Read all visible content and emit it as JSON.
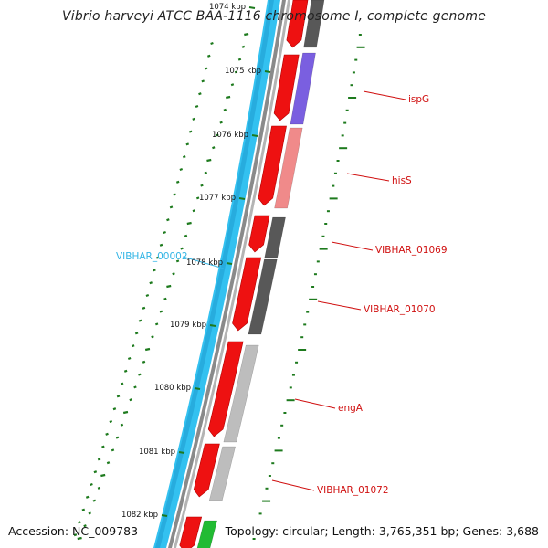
{
  "title": "Vibrio harveyi ATCC BAA-1116 chromosome I, complete genome",
  "accession": "Accession: NC_009783",
  "summary": "Topology: circular; Length: 3,765,351 bp; Genes: 3,688",
  "kbp_ticks": [
    {
      "label": "1074 kbp"
    },
    {
      "label": "1075 kbp"
    },
    {
      "label": "1076 kbp"
    },
    {
      "label": "1077 kbp"
    },
    {
      "label": "1078 kbp"
    },
    {
      "label": "1079 kbp"
    },
    {
      "label": "1080 kbp"
    },
    {
      "label": "1081 kbp"
    },
    {
      "label": "1082 kbp"
    }
  ],
  "gene_labels": [
    {
      "text": "ispG",
      "color": "#d01010"
    },
    {
      "text": "hisS",
      "color": "#d01010"
    },
    {
      "text": "VIBHAR_01069",
      "color": "#d01010"
    },
    {
      "text": "VIBHAR_01070",
      "color": "#d01010"
    },
    {
      "text": "engA",
      "color": "#d01010"
    },
    {
      "text": "VIBHAR_01072",
      "color": "#d01010"
    },
    {
      "text": "VIBHAR_00002",
      "color": "#33b5e5"
    }
  ],
  "colors": {
    "forward_cds": "#ee1111",
    "trna_band": "#33c1f0",
    "backbone": "#8a8a8a",
    "gc_ticks": "#1d7a1d",
    "cog_violet": "#7a5fe0",
    "cog_pink": "#f08a8a",
    "cog_dark": "#585858",
    "cog_light": "#bdbdbd",
    "cog_green": "#22bb33"
  }
}
